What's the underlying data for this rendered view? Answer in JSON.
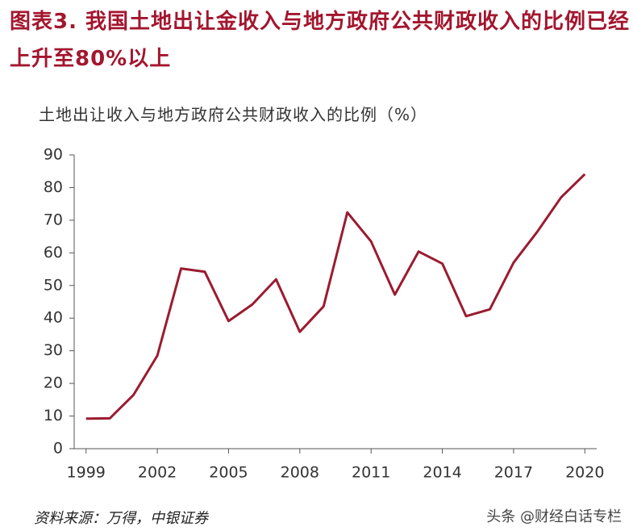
{
  "chart_data": {
    "type": "line",
    "title": "图表3.  我国土地出让金收入与地方政府公共财政收入的比例已经上升至80%以上",
    "subtitle": "土地出让收入与地方政府公共财政收入的比例（%）",
    "source": "资料来源：万得，中银证券",
    "watermark": "头条 @财经白话专栏",
    "x": [
      1999,
      2000,
      2001,
      2002,
      2003,
      2004,
      2005,
      2006,
      2007,
      2008,
      2009,
      2010,
      2011,
      2012,
      2013,
      2014,
      2015,
      2016,
      2017,
      2018,
      2019,
      2020
    ],
    "series": [
      {
        "name": "土地出让收入与地方政府公共财政收入的比例",
        "color": "#9b1b30",
        "values": [
          9.2,
          9.3,
          16.5,
          28.5,
          55.2,
          54.2,
          39.1,
          44.2,
          51.9,
          35.8,
          43.6,
          72.4,
          63.5,
          47.2,
          60.4,
          56.7,
          40.6,
          42.7,
          57,
          66.5,
          77,
          84.1
        ]
      }
    ],
    "xlim": [
      1998.5,
      2020.5
    ],
    "xticks": [
      1999,
      2002,
      2005,
      2008,
      2011,
      2014,
      2017,
      2020
    ],
    "ylim": [
      0,
      90
    ],
    "yticks": [
      0,
      10,
      20,
      30,
      40,
      50,
      60,
      70,
      80,
      90
    ]
  }
}
